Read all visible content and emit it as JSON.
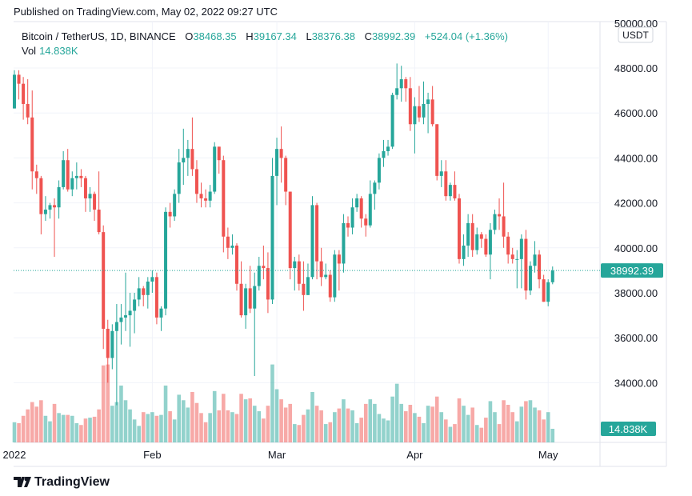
{
  "published": "Published on TradingView.com, May 02, 2022 09:27 UTC",
  "legend": {
    "symbol": "Bitcoin / TetherUS, 1D, BINANCE",
    "o_label": "O",
    "o": "38468.35",
    "h_label": "H",
    "h": "39167.34",
    "l_label": "L",
    "l": "38376.38",
    "c_label": "C",
    "c": "38992.39",
    "change": "+524.04 (+1.36%)",
    "vol_label": "Vol",
    "vol": "14.838K"
  },
  "currency": "USDT",
  "last_price_label": "38992.39",
  "last_volume_label": "14.838K",
  "logo_text": "TradingView",
  "colors": {
    "up": "#26a69a",
    "down": "#ef5350",
    "grid": "#f0f3fa"
  },
  "chart_data": {
    "type": "candlestick",
    "title": "Bitcoin / TetherUS, 1D, BINANCE",
    "start_date": "2022-01-01",
    "unit": "thousand USDT",
    "ylim": [
      32800,
      50200
    ],
    "y_ticks": [
      "50000.00",
      "48000.00",
      "46000.00",
      "44000.00",
      "42000.00",
      "40000.00",
      "38000.00",
      "36000.00",
      "34000.00"
    ],
    "y_tick_values": [
      50000,
      48000,
      46000,
      44000,
      42000,
      40000,
      38000,
      36000,
      34000
    ],
    "x_ticks": [
      {
        "label": "2022",
        "index": 0
      },
      {
        "label": "Feb",
        "index": 31
      },
      {
        "label": "Mar",
        "index": 59
      },
      {
        "label": "Apr",
        "index": 90
      },
      {
        "label": "May",
        "index": 120
      }
    ],
    "first_open": 46.2,
    "close": [
      47.7,
      47.3,
      46.4,
      45.8,
      43.4,
      43.1,
      41.5,
      41.7,
      41.9,
      41.8,
      42.7,
      43.9,
      42.6,
      43.1,
      43.2,
      43.1,
      42.2,
      42.4,
      41.7,
      40.7,
      36.4,
      35.1,
      36.3,
      36.7,
      36.9,
      37.0,
      37.2,
      37.7,
      38.2,
      37.9,
      38.5,
      38.7,
      36.9,
      37.3,
      41.6,
      41.4,
      42.4,
      43.8,
      44.0,
      44.4,
      43.5,
      42.4,
      42.2,
      42.1,
      42.5,
      44.5,
      43.9,
      40.5,
      40.0,
      40.1,
      38.4,
      37.0,
      38.2,
      37.3,
      38.3,
      39.2,
      39.1,
      37.7,
      43.2,
      44.4,
      44.0,
      42.5,
      39.1,
      39.4,
      38.4,
      37.9,
      38.7,
      41.9,
      39.4,
      38.7,
      38.8,
      37.8,
      39.7,
      39.3,
      41.1,
      40.9,
      41.8,
      42.2,
      41.3,
      41.0,
      42.4,
      42.9,
      44.0,
      44.3,
      44.5,
      46.8,
      47.1,
      47.5,
      47.1,
      45.5,
      46.3,
      45.8,
      46.4,
      46.6,
      45.5,
      43.2,
      43.4,
      42.3,
      42.8,
      42.2,
      39.5,
      40.1,
      41.1,
      39.9,
      40.6,
      40.4,
      39.7,
      40.8,
      41.5,
      41.4,
      40.5,
      39.7,
      39.5,
      39.5,
      40.4,
      38.1,
      39.2,
      39.7,
      38.6,
      37.6,
      38.47,
      38.99
    ],
    "high": [
      47.9,
      47.9,
      47.6,
      47.5,
      47.0,
      43.7,
      43.2,
      42.3,
      42.0,
      42.2,
      43.0,
      44.3,
      44.4,
      43.4,
      43.8,
      43.5,
      43.2,
      42.7,
      42.5,
      43.4,
      41.0,
      36.8,
      36.6,
      37.5,
      37.5,
      38.9,
      38.0,
      38.0,
      38.7,
      38.3,
      38.7,
      39.0,
      38.9,
      37.4,
      41.8,
      42.0,
      42.6,
      44.4,
      45.3,
      44.8,
      45.8,
      43.9,
      42.9,
      42.6,
      42.8,
      44.7,
      44.5,
      44.1,
      40.9,
      40.6,
      40.2,
      39.4,
      38.4,
      39.2,
      38.9,
      39.6,
      40.1,
      39.8,
      44.0,
      44.9,
      45.4,
      44.1,
      42.5,
      39.6,
      39.7,
      39.4,
      39.3,
      42.3,
      42.0,
      40.0,
      39.3,
      39.0,
      39.9,
      39.9,
      41.5,
      41.4,
      42.2,
      42.4,
      42.3,
      41.5,
      43.0,
      43.0,
      44.2,
      44.8,
      44.8,
      46.9,
      48.2,
      48.1,
      47.6,
      47.6,
      46.7,
      47.2,
      47.4,
      46.9,
      47.2,
      45.5,
      43.9,
      43.9,
      42.9,
      43.4,
      42.4,
      40.6,
      41.5,
      41.5,
      40.9,
      40.7,
      40.6,
      41.1,
      41.7,
      42.2,
      42.9,
      40.7,
      40.0,
      39.9,
      40.6,
      40.8,
      39.4,
      40.3,
      39.9,
      38.8,
      38.6,
      39.17
    ],
    "low": [
      46.2,
      46.6,
      45.7,
      45.5,
      42.6,
      42.4,
      40.6,
      41.2,
      41.3,
      39.6,
      41.3,
      42.6,
      42.5,
      42.3,
      42.6,
      42.7,
      41.6,
      41.6,
      41.2,
      40.6,
      35.5,
      34.0,
      34.6,
      33.0,
      35.7,
      36.3,
      35.6,
      36.2,
      37.4,
      37.4,
      37.3,
      38.0,
      36.6,
      36.3,
      37.0,
      40.9,
      41.2,
      42.0,
      42.8,
      43.2,
      43.2,
      42.0,
      41.8,
      41.8,
      41.8,
      42.4,
      43.3,
      39.8,
      39.5,
      39.7,
      38.1,
      36.9,
      36.4,
      37.1,
      34.3,
      38.1,
      38.6,
      37.1,
      37.5,
      41.9,
      42.9,
      41.9,
      38.6,
      38.1,
      38.1,
      37.2,
      37.9,
      38.6,
      38.6,
      38.3,
      38.6,
      37.6,
      37.6,
      38.1,
      38.9,
      40.5,
      40.6,
      41.6,
      40.9,
      40.5,
      40.9,
      41.7,
      42.6,
      43.6,
      44.1,
      44.4,
      46.6,
      46.5,
      46.5,
      45.2,
      44.2,
      45.6,
      45.5,
      45.1,
      45.4,
      43.0,
      42.7,
      42.1,
      42.1,
      42.1,
      39.3,
      39.2,
      39.6,
      39.6,
      39.7,
      40.0,
      39.6,
      38.6,
      40.6,
      40.8,
      40.0,
      39.3,
      39.3,
      38.2,
      38.2,
      37.7,
      37.9,
      38.9,
      38.2,
      37.6,
      37.4,
      38.38
    ],
    "volume_k": [
      22,
      21,
      29,
      36,
      44,
      39,
      46,
      29,
      23,
      42,
      32,
      30,
      30,
      29,
      21,
      19,
      26,
      27,
      28,
      36,
      84,
      85,
      40,
      44,
      62,
      46,
      36,
      25,
      18,
      33,
      31,
      33,
      29,
      30,
      62,
      34,
      25,
      52,
      46,
      38,
      55,
      43,
      32,
      22,
      32,
      56,
      35,
      53,
      35,
      33,
      31,
      53,
      47,
      48,
      40,
      34,
      26,
      40,
      85,
      58,
      47,
      38,
      42,
      20,
      19,
      30,
      36,
      55,
      40,
      35,
      20,
      22,
      33,
      37,
      47,
      37,
      35,
      21,
      27,
      42,
      47,
      42,
      31,
      26,
      24,
      50,
      64,
      42,
      34,
      41,
      32,
      28,
      21,
      40,
      39,
      50,
      33,
      25,
      17,
      20,
      48,
      40,
      30,
      38,
      19,
      16,
      27,
      45,
      33,
      20,
      46,
      41,
      33,
      23,
      39,
      45,
      46,
      38,
      35,
      25,
      33,
      14.838
    ]
  }
}
